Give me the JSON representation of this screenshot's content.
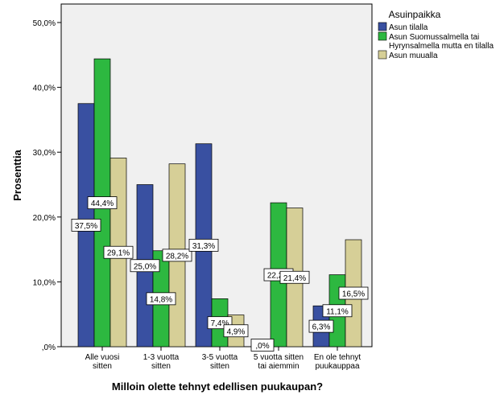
{
  "chart_data": {
    "type": "bar",
    "title": "",
    "xlabel": "Milloin olette tehnyt edellisen puukaupan?",
    "ylabel": "Prosenttia",
    "ylim": [
      0,
      50
    ],
    "yticks": [
      0,
      10,
      20,
      30,
      40,
      50
    ],
    "ytick_labels": [
      ",0%",
      "10,0%",
      "20,0%",
      "30,0%",
      "40,0%",
      "50,0%"
    ],
    "grid": false,
    "legend_title": "Asuinpaikka",
    "legend_position": "right",
    "categories": [
      [
        "Alle vuosi",
        "sitten"
      ],
      [
        "1-3 vuotta",
        "sitten"
      ],
      [
        "3-5 vuotta",
        "sitten"
      ],
      [
        "5 vuotta sitten",
        "tai aiemmin"
      ],
      [
        "En ole tehnyt",
        "puukauppaa"
      ]
    ],
    "series": [
      {
        "name": [
          "Asun tilalla"
        ],
        "color": "#3950a1",
        "values": [
          37.5,
          25.0,
          31.3,
          0.0,
          6.3
        ],
        "labels": [
          "37,5%",
          "25,0%",
          "31,3%",
          ",0%",
          "6,3%"
        ]
      },
      {
        "name": [
          "Asun Suomussalmella tai",
          "Hyrynsalmella mutta en tilalla"
        ],
        "color": "#2db840",
        "values": [
          44.4,
          14.8,
          7.4,
          22.2,
          11.1
        ],
        "labels": [
          "44,4%",
          "14,8%",
          "7,4%",
          "22,2%",
          "11,1%"
        ]
      },
      {
        "name": [
          "Asun muualla"
        ],
        "color": "#d6cf97",
        "values": [
          29.1,
          28.2,
          4.9,
          21.4,
          16.5
        ],
        "labels": [
          "29,1%",
          "28,2%",
          "4,9%",
          "21,4%",
          "16,5%"
        ]
      }
    ]
  }
}
